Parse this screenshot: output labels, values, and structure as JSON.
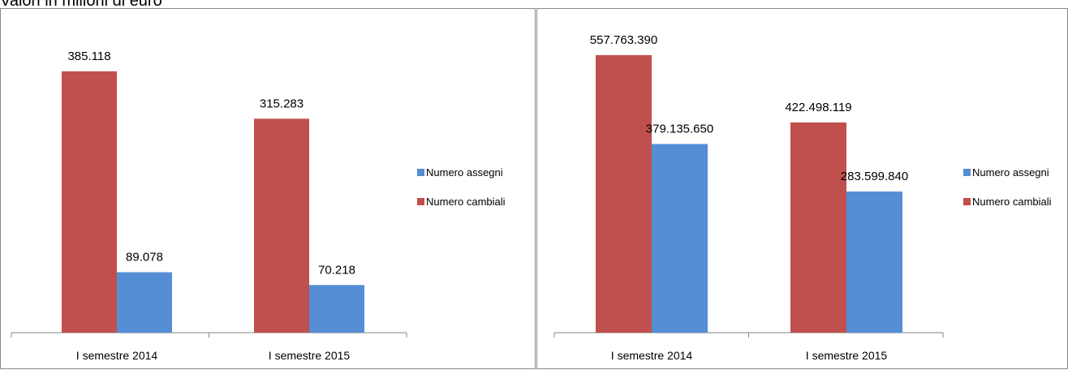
{
  "header": {
    "text": "Valori in milioni di euro"
  },
  "chart_data": [
    {
      "type": "bar",
      "categories": [
        "I semestre 2014",
        "I semestre 2015"
      ],
      "series": [
        {
          "name": "Numero cambiali",
          "values": [
            385118,
            315283
          ],
          "labels": [
            "385.118",
            "315.283"
          ],
          "color": "#C0504D"
        },
        {
          "name": "Numero assegni",
          "values": [
            89078,
            70218
          ],
          "labels": [
            "89.078",
            "70.218"
          ],
          "color": "#558ED5"
        }
      ],
      "legend": {
        "placement": "right",
        "order": [
          "Numero assegni",
          "Numero cambiali"
        ]
      },
      "ylim": [
        0,
        440000
      ],
      "grid": false
    },
    {
      "type": "bar",
      "categories": [
        "I semestre 2014",
        "I semestre 2015"
      ],
      "series": [
        {
          "name": "Numero cambiali",
          "values": [
            557763390,
            422498119
          ],
          "labels": [
            "557.763.390",
            "422.498.119"
          ],
          "color": "#C0504D"
        },
        {
          "name": "Numero assegni",
          "values": [
            379135650,
            283599840
          ],
          "labels": [
            "379.135.650",
            "283.599.840"
          ],
          "color": "#558ED5"
        }
      ],
      "legend": {
        "placement": "right",
        "order": [
          "Numero assegni",
          "Numero cambiali"
        ]
      },
      "ylim": [
        0,
        600000000
      ],
      "grid": false
    }
  ]
}
